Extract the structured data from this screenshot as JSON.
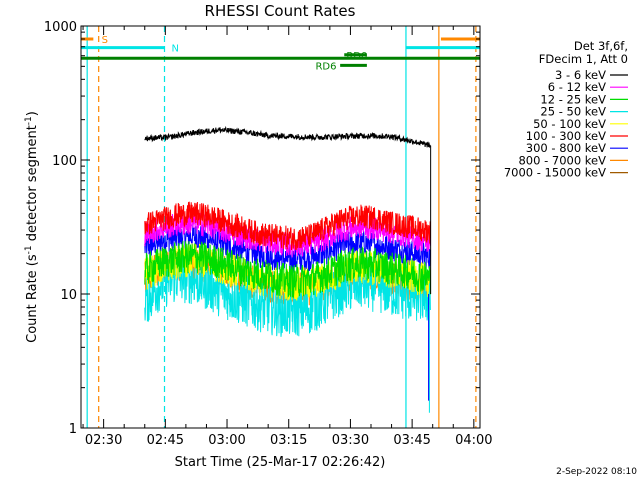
{
  "chart_data": {
    "type": "line",
    "title": "RHESSI Count Rates",
    "xlabel": "Start Time (25-Mar-17 02:26:42)",
    "ylabel_main": "Count Rate (s",
    "ylabel_sup1": "-1",
    "ylabel_mid": " detector segment",
    "ylabel_sup2": "-1",
    "ylabel_end": ")",
    "y_scale": "log",
    "ylim": [
      1,
      1000
    ],
    "xlim_minutes_after_0226": [
      -1.5,
      95.5
    ],
    "x_tick_labels": [
      "02:30",
      "02:45",
      "03:00",
      "03:15",
      "03:30",
      "03:45",
      "04:00"
    ],
    "x_tick_minutes": [
      4,
      19,
      34,
      49,
      64,
      79,
      94
    ],
    "y_tick_labels": [
      "1",
      "10",
      "100",
      "1000"
    ],
    "y_tick_values": [
      1,
      10,
      100,
      1000
    ],
    "legend_header": [
      "Det 3f,6f,",
      "FDecim 1, Att 0"
    ],
    "series": [
      {
        "name": "3 - 6 keV",
        "color": "#000000",
        "points": [
          [
            14,
            145
          ],
          [
            20,
            148
          ],
          [
            26,
            160
          ],
          [
            32,
            168
          ],
          [
            38,
            162
          ],
          [
            44,
            152
          ],
          [
            50,
            150
          ],
          [
            56,
            148
          ],
          [
            62,
            150
          ],
          [
            68,
            152
          ],
          [
            74,
            150
          ],
          [
            80,
            136
          ],
          [
            83.5,
            128
          ]
        ]
      },
      {
        "name": "6 - 12 keV",
        "color": "#ff00ff",
        "points": [
          [
            14,
            28
          ],
          [
            18,
            31
          ],
          [
            22,
            33
          ],
          [
            26,
            34
          ],
          [
            30,
            32
          ],
          [
            34,
            29
          ],
          [
            38,
            27
          ],
          [
            42,
            25
          ],
          [
            46,
            24
          ],
          [
            50,
            23
          ],
          [
            54,
            23.5
          ],
          [
            58,
            26
          ],
          [
            62,
            30
          ],
          [
            66,
            32
          ],
          [
            70,
            31
          ],
          [
            74,
            29
          ],
          [
            78,
            27
          ],
          [
            82,
            25
          ],
          [
            83.5,
            24
          ]
        ]
      },
      {
        "name": "12 - 25 keV",
        "color": "#00dd00",
        "points": [
          [
            14,
            15
          ],
          [
            18,
            17
          ],
          [
            22,
            18.5
          ],
          [
            26,
            19
          ],
          [
            30,
            18
          ],
          [
            34,
            16.5
          ],
          [
            38,
            15
          ],
          [
            42,
            14
          ],
          [
            46,
            13
          ],
          [
            50,
            12.5
          ],
          [
            54,
            12.8
          ],
          [
            58,
            14
          ],
          [
            62,
            16
          ],
          [
            66,
            17
          ],
          [
            70,
            16.5
          ],
          [
            74,
            15.5
          ],
          [
            78,
            14.5
          ],
          [
            82,
            13.5
          ],
          [
            83.5,
            13
          ]
        ]
      },
      {
        "name": "25 - 50 keV",
        "color": "#00e5e5",
        "points": [
          [
            14,
            9
          ],
          [
            18,
            12
          ],
          [
            22,
            13.5
          ],
          [
            26,
            13
          ],
          [
            30,
            11.5
          ],
          [
            34,
            10
          ],
          [
            38,
            9
          ],
          [
            42,
            8.2
          ],
          [
            46,
            7.6
          ],
          [
            50,
            7.4
          ],
          [
            54,
            7.8
          ],
          [
            58,
            9
          ],
          [
            62,
            11
          ],
          [
            66,
            12
          ],
          [
            70,
            11.5
          ],
          [
            74,
            10.5
          ],
          [
            78,
            9.8
          ],
          [
            82,
            9.5
          ],
          [
            83.5,
            9.2
          ]
        ]
      },
      {
        "name": "50 - 100 keV",
        "color": "#ffff00",
        "points": [
          [
            14,
            14
          ],
          [
            18,
            16
          ],
          [
            22,
            17.5
          ],
          [
            26,
            18
          ],
          [
            30,
            17
          ],
          [
            34,
            15.5
          ],
          [
            38,
            14
          ],
          [
            42,
            13
          ],
          [
            46,
            12.2
          ],
          [
            50,
            11.8
          ],
          [
            54,
            12
          ],
          [
            58,
            13.2
          ],
          [
            62,
            15
          ],
          [
            66,
            16
          ],
          [
            70,
            15.5
          ],
          [
            74,
            14.5
          ],
          [
            78,
            13.6
          ],
          [
            82,
            12.8
          ],
          [
            83.5,
            12.5
          ]
        ]
      },
      {
        "name": "100 - 300 keV",
        "color": "#ff0000",
        "points": [
          [
            14,
            33
          ],
          [
            18,
            36
          ],
          [
            22,
            39
          ],
          [
            26,
            40
          ],
          [
            30,
            38
          ],
          [
            34,
            34
          ],
          [
            38,
            31
          ],
          [
            42,
            28
          ],
          [
            46,
            27
          ],
          [
            50,
            26
          ],
          [
            54,
            27
          ],
          [
            58,
            31
          ],
          [
            62,
            36
          ],
          [
            66,
            38
          ],
          [
            70,
            37
          ],
          [
            74,
            34
          ],
          [
            78,
            32
          ],
          [
            82,
            30
          ],
          [
            83.5,
            29
          ]
        ]
      },
      {
        "name": "300 - 800 keV",
        "color": "#0000ff",
        "points": [
          [
            14,
            22
          ],
          [
            18,
            25
          ],
          [
            22,
            26.5
          ],
          [
            26,
            27
          ],
          [
            30,
            25.5
          ],
          [
            34,
            23
          ],
          [
            38,
            21
          ],
          [
            42,
            19.5
          ],
          [
            46,
            18.5
          ],
          [
            50,
            18
          ],
          [
            54,
            18.5
          ],
          [
            58,
            20.5
          ],
          [
            62,
            23
          ],
          [
            66,
            24
          ],
          [
            70,
            23.5
          ],
          [
            74,
            22
          ],
          [
            78,
            20.5
          ],
          [
            82,
            19.5
          ],
          [
            83.5,
            19
          ]
        ]
      },
      {
        "name": "800 - 7000 keV",
        "color": "#ff8800",
        "points": [
          [
            14,
            13.5
          ],
          [
            18,
            15.5
          ],
          [
            22,
            16.5
          ],
          [
            26,
            17
          ],
          [
            30,
            16
          ],
          [
            34,
            14.5
          ],
          [
            38,
            13
          ],
          [
            42,
            12
          ],
          [
            46,
            11.2
          ],
          [
            50,
            10.8
          ],
          [
            54,
            11
          ],
          [
            58,
            12
          ],
          [
            62,
            13.8
          ],
          [
            66,
            14.5
          ],
          [
            70,
            14
          ],
          [
            74,
            13
          ],
          [
            78,
            12
          ],
          [
            82,
            11.2
          ],
          [
            83.5,
            10.8
          ]
        ]
      },
      {
        "name": "7000 - 15000 keV",
        "color": "#a05a00",
        "points": []
      }
    ],
    "vertical_lines": [
      {
        "x": 0,
        "color": "#00e5e5",
        "style": "solid"
      },
      {
        "x": 2.8,
        "color": "#ff8800",
        "style": "dashed"
      },
      {
        "x": 18.8,
        "color": "#00e5e5",
        "style": "dashed"
      },
      {
        "x": 77.5,
        "color": "#00e5e5",
        "style": "solid"
      },
      {
        "x": 85.5,
        "color": "#ff8800",
        "style": "solid"
      },
      {
        "x": 94.5,
        "color": "#ff8800",
        "style": "dashed"
      }
    ],
    "flag_bars": [
      {
        "label": "S",
        "color": "#ff8800",
        "x_start": -1.5,
        "x_end": 1.5,
        "y": 800,
        "label_x": 3.5
      },
      {
        "label": "S",
        "color": "#ff8800",
        "x_start": 86,
        "x_end": 95.5,
        "y": 800,
        "label_x": null
      },
      {
        "label": "N",
        "color": "#00e5e5",
        "x_start": -1.5,
        "x_end": 18.8,
        "y": 690,
        "label_x": 20.5
      },
      {
        "label": "N",
        "color": "#00e5e5",
        "x_start": 77.5,
        "x_end": 95.5,
        "y": 690,
        "label_x": null
      },
      {
        "label": "",
        "color": "#008000",
        "x_start": -1.5,
        "x_end": 95.5,
        "y": 575,
        "label_x": null
      },
      {
        "label": "RD0",
        "color": "#008000",
        "x_start": 62.5,
        "x_end": 68,
        "y": 610,
        "label_x": 63
      },
      {
        "label": "RD6",
        "color": "#008000",
        "x_start": 61.5,
        "x_end": 68,
        "y": 508,
        "label_x": 55.5
      }
    ],
    "grid": false,
    "legend_placement": "right",
    "footer": "2-Sep-2022 08:10"
  }
}
